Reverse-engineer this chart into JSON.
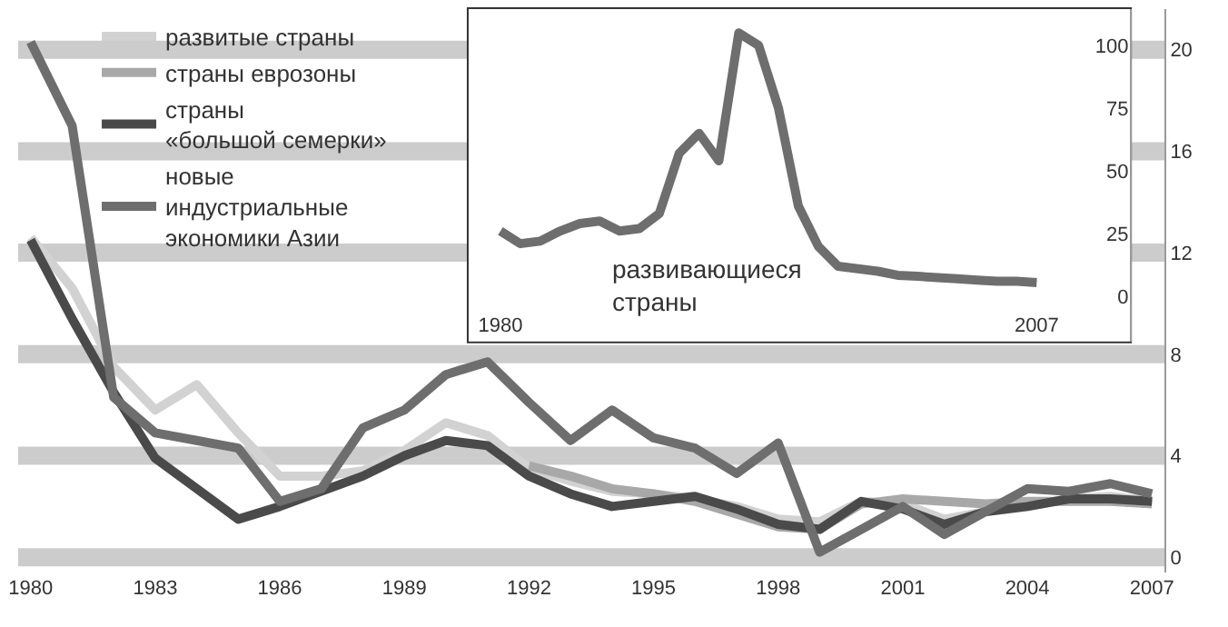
{
  "chart_data": [
    {
      "type": "line",
      "x": [
        1980,
        1981,
        1982,
        1983,
        1984,
        1985,
        1986,
        1987,
        1988,
        1989,
        1990,
        1991,
        1992,
        1993,
        1994,
        1995,
        1996,
        1997,
        1998,
        1999,
        2000,
        2001,
        2002,
        2003,
        2004,
        2005,
        2006,
        2007
      ],
      "series": [
        {
          "name": "развитые страны",
          "color": "#d2d2d2",
          "values": [
            12.6,
            10.6,
            7.5,
            5.8,
            6.8,
            4.9,
            3.2,
            3.2,
            3.4,
            4.2,
            5.3,
            4.8,
            3.5,
            3.0,
            2.6,
            2.5,
            2.3,
            2.0,
            1.5,
            1.4,
            2.2,
            2.1,
            1.5,
            1.8,
            2.0,
            2.3,
            2.4,
            2.2
          ]
        },
        {
          "name": "страны еврозоны",
          "color": "#a8a8a8",
          "values": [
            null,
            null,
            null,
            null,
            null,
            null,
            null,
            null,
            null,
            null,
            null,
            null,
            3.6,
            3.2,
            2.7,
            2.5,
            2.2,
            1.7,
            1.2,
            1.1,
            2.1,
            2.3,
            2.2,
            2.1,
            2.2,
            2.2,
            2.2,
            2.1
          ]
        },
        {
          "name": "страны\n«большой семерки»",
          "color": "#4a4a4a",
          "values": [
            12.5,
            9.4,
            6.5,
            3.9,
            2.7,
            1.5,
            2.0,
            2.6,
            3.2,
            4.0,
            4.6,
            4.4,
            3.2,
            2.5,
            2.0,
            2.2,
            2.4,
            1.9,
            1.3,
            1.1,
            2.2,
            1.9,
            1.3,
            1.8,
            2.0,
            2.3,
            2.3,
            2.2
          ]
        },
        {
          "name": "новые\nиндустриальные\nэкономики Азии",
          "color": "#6e6e6e",
          "values": [
            20.3,
            17.0,
            6.3,
            4.9,
            4.6,
            4.3,
            2.2,
            2.7,
            5.1,
            5.8,
            7.2,
            7.7,
            6.1,
            4.6,
            5.8,
            4.7,
            4.3,
            3.3,
            4.5,
            0.2,
            1.1,
            2.0,
            0.9,
            1.8,
            2.7,
            2.6,
            2.9,
            2.5
          ]
        }
      ],
      "xlim": [
        1979.7,
        2007.3
      ],
      "ylim": [
        -0.6,
        21.6
      ],
      "xticks": [
        1980,
        1983,
        1986,
        1989,
        1992,
        1995,
        1998,
        2001,
        2004,
        2007
      ],
      "yticks": [
        0,
        4,
        8,
        12,
        16,
        20
      ],
      "grid": "y",
      "legend": "top left",
      "marker": "none",
      "line_style": "solid"
    },
    {
      "type": "line",
      "x": [
        1980,
        1981,
        1982,
        1983,
        1984,
        1985,
        1986,
        1987,
        1988,
        1989,
        1990,
        1991,
        1992,
        1993,
        1994,
        1995,
        1996,
        1997,
        1998,
        1999,
        2000,
        2001,
        2002,
        2003,
        2004,
        2005,
        2006,
        2007
      ],
      "series": [
        {
          "name": "развивающиеся\nстраны",
          "color": "#6e6e6e",
          "values": [
            26,
            21,
            22,
            26,
            29,
            30,
            26,
            27,
            33,
            57,
            65,
            54,
            105,
            100,
            75,
            36,
            20,
            12,
            11,
            10,
            8.4,
            8,
            7.5,
            7,
            6.5,
            6,
            6,
            5.5
          ]
        }
      ],
      "xlim": [
        1978.4,
        2011.7
      ],
      "ylim": [
        -18,
        114.5
      ],
      "xticks": [
        1980,
        2007
      ],
      "yticks": [
        0,
        25,
        50,
        75,
        100
      ],
      "grid": "y",
      "marker": "none",
      "line_style": "solid"
    }
  ]
}
